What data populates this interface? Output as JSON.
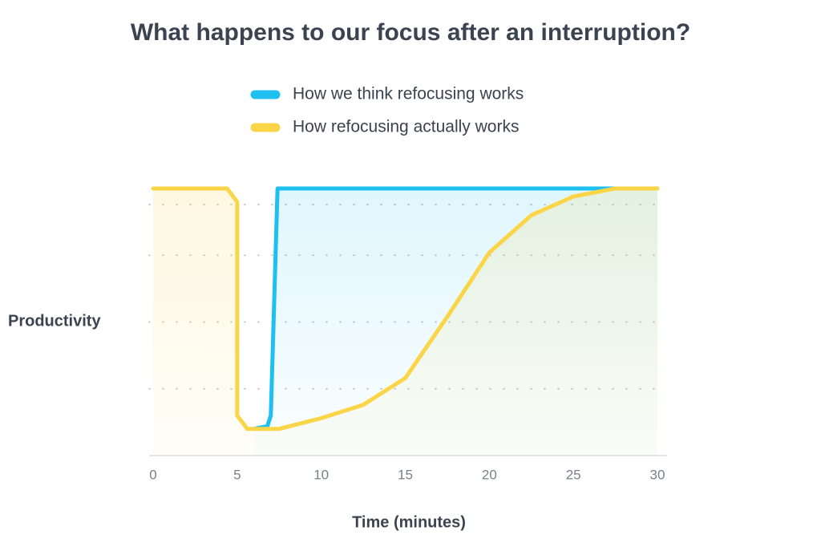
{
  "chart_data": {
    "type": "line",
    "title": "What happens to our focus after an interruption?",
    "y_label": "Productivity",
    "x_label": "Time (minutes)",
    "xlim": [
      0,
      30
    ],
    "xticks": [
      0,
      5,
      10,
      15,
      20,
      25,
      30
    ],
    "ylim": [
      0,
      100
    ],
    "yticks": [
      25,
      50,
      75,
      94
    ],
    "grid": true,
    "series": [
      {
        "name": "How we think refocusing works",
        "color": "#1ec0f2",
        "x": [
          6,
          6.8,
          7,
          7.4,
          30
        ],
        "values": [
          10,
          11,
          15,
          100,
          100
        ]
      },
      {
        "name": "How refocusing actually works",
        "color": "#fbd548",
        "x": [
          0,
          4.4,
          5,
          5,
          5.6,
          7.5,
          10,
          12.5,
          15,
          17.5,
          20,
          22.5,
          25,
          27.5,
          30
        ],
        "values": [
          100,
          100,
          95,
          15,
          10,
          10,
          14,
          19,
          29,
          52,
          76,
          90,
          97,
          100,
          100
        ]
      }
    ]
  }
}
